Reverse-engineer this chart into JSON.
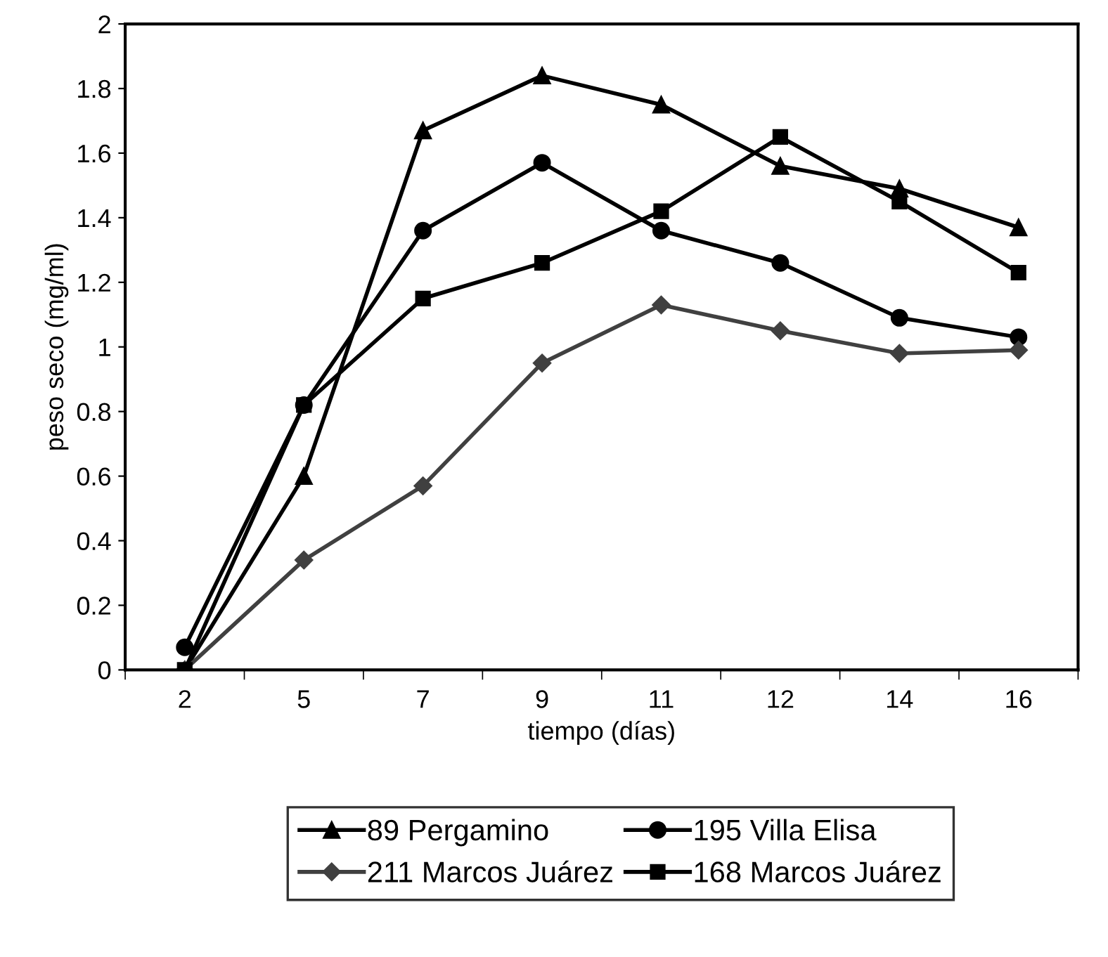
{
  "chart_data": {
    "type": "line",
    "xlabel": "tiempo (días)",
    "ylabel": "peso seco (mg/ml)",
    "categories": [
      "2",
      "5",
      "7",
      "9",
      "11",
      "12",
      "14",
      "16"
    ],
    "ylim": [
      0,
      2
    ],
    "yticks": [
      0,
      0.2,
      0.4,
      0.6,
      0.8,
      1,
      1.2,
      1.4,
      1.6,
      1.8,
      2
    ],
    "grid": false,
    "legend": "bottom",
    "series": [
      {
        "name": "89 Pergamino",
        "color": "#000000",
        "marker": "triangle",
        "values": [
          0.0,
          0.6,
          1.67,
          1.84,
          1.75,
          1.56,
          1.49,
          1.37
        ]
      },
      {
        "name": "195 Villa Elisa",
        "color": "#000000",
        "marker": "circle",
        "values": [
          0.07,
          0.82,
          1.36,
          1.57,
          1.36,
          1.26,
          1.09,
          1.03
        ]
      },
      {
        "name": "211 Marcos Juárez",
        "color": "#404040",
        "marker": "diamond",
        "values": [
          0.0,
          0.34,
          0.57,
          0.95,
          1.13,
          1.05,
          0.98,
          0.99
        ]
      },
      {
        "name": "168 Marcos Juárez",
        "color": "#000000",
        "marker": "square",
        "values": [
          0.0,
          0.82,
          1.15,
          1.26,
          1.42,
          1.65,
          1.45,
          1.23
        ]
      }
    ]
  }
}
